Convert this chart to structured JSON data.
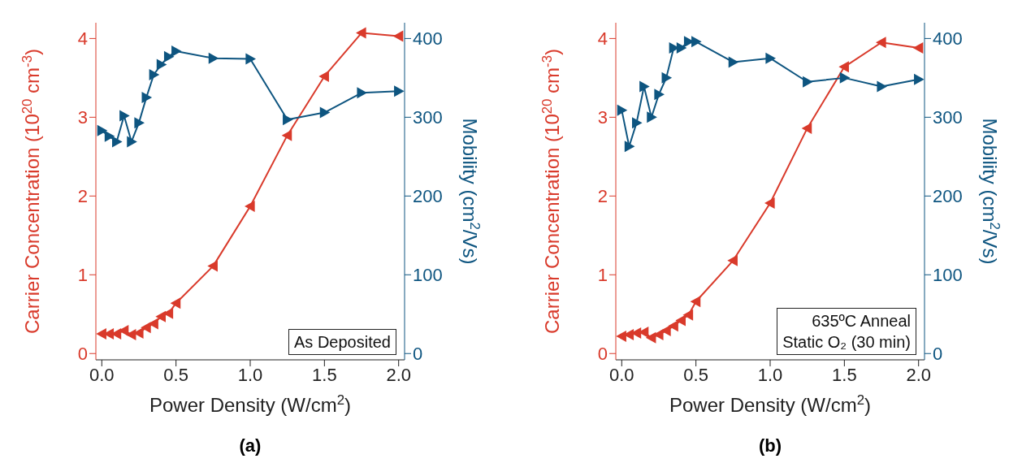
{
  "chart_data": [
    {
      "type": "line",
      "title": "(a)",
      "xlabel": "Power Density (W/cm$^{2}$)",
      "ylabel": "Carrier Concentration (10$^{20}$ cm$^{-3}$)",
      "y2label": "Mobility (cm$^{2}$/Vs)",
      "annotations": [
        "As Deposited"
      ],
      "x": [
        0,
        0.05,
        0.1,
        0.15,
        0.2,
        0.25,
        0.3,
        0.35,
        0.4,
        0.45,
        0.5,
        0.75,
        1.0,
        1.25,
        1.5,
        1.75,
        2.0
      ],
      "series": [
        {
          "color": "#d93a2b",
          "values": [
            0.25,
            0.25,
            0.25,
            0.29,
            0.24,
            0.26,
            0.33,
            0.38,
            0.47,
            0.51,
            0.64,
            1.11,
            1.87,
            2.77,
            3.52,
            4.07,
            4.03
          ]
        },
        {
          "color": "#0e5580",
          "axis": "y2",
          "values": [
            283,
            276,
            269,
            302,
            269,
            293,
            325,
            354,
            367,
            377,
            384,
            375,
            374,
            297,
            306,
            331,
            333
          ]
        }
      ],
      "xlim": [
        -0.04,
        2.04
      ],
      "xticks": [
        {
          "value": 0,
          "label": "0.0"
        },
        {
          "value": 0.5,
          "label": "0.5"
        },
        {
          "value": 1,
          "label": "1.0"
        },
        {
          "value": 1.5,
          "label": "1.5"
        },
        {
          "value": 2,
          "label": "2.0"
        }
      ],
      "ylim": [
        -0.08,
        4.2
      ],
      "yticks": [
        0,
        1,
        2,
        3,
        4
      ],
      "y2lim": [
        -8,
        420
      ],
      "y2ticks": [
        0,
        100,
        200,
        300,
        400
      ],
      "grid": false,
      "legend": false,
      "marker": "triangle",
      "line_style": "solid"
    },
    {
      "type": "line",
      "title": "(b)",
      "xlabel": "Power Density (W/cm$^{2}$)",
      "ylabel": "Carrier Concentration (10$^{20}$ cm$^{-3}$)",
      "y2label": "Mobility (cm$^{2}$/Vs)",
      "annotations": [
        "635ºC Anneal",
        "Static O₂ (30 min)"
      ],
      "x": [
        0,
        0.05,
        0.1,
        0.15,
        0.2,
        0.25,
        0.3,
        0.35,
        0.4,
        0.45,
        0.5,
        0.75,
        1.0,
        1.25,
        1.5,
        1.75,
        2.0
      ],
      "series": [
        {
          "color": "#d93a2b",
          "values": [
            0.22,
            0.24,
            0.26,
            0.27,
            0.2,
            0.24,
            0.29,
            0.35,
            0.42,
            0.49,
            0.66,
            1.18,
            1.91,
            2.86,
            3.64,
            3.95,
            3.88
          ]
        },
        {
          "color": "#0e5580",
          "axis": "y2",
          "values": [
            309,
            263,
            293,
            339,
            300,
            329,
            350,
            388,
            388,
            396,
            396,
            370,
            375,
            345,
            350,
            339,
            348
          ]
        }
      ],
      "xlim": [
        -0.04,
        2.04
      ],
      "xticks": [
        {
          "value": 0,
          "label": "0.0"
        },
        {
          "value": 0.5,
          "label": "0.5"
        },
        {
          "value": 1,
          "label": "1.0"
        },
        {
          "value": 1.5,
          "label": "1.5"
        },
        {
          "value": 2,
          "label": "2.0"
        }
      ],
      "ylim": [
        -0.08,
        4.2
      ],
      "yticks": [
        0,
        1,
        2,
        3,
        4
      ],
      "y2lim": [
        -8,
        420
      ],
      "y2ticks": [
        0,
        100,
        200,
        300,
        400
      ],
      "grid": false,
      "legend": false,
      "marker": "triangle",
      "line_style": "solid"
    }
  ]
}
